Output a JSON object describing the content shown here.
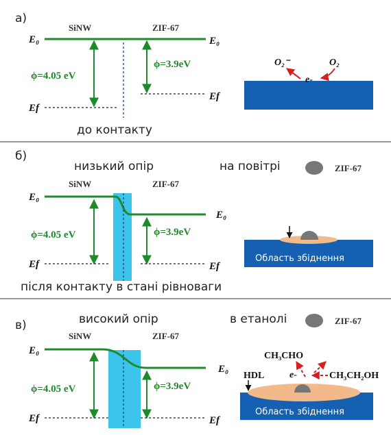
{
  "panels": [
    {
      "label": "а)",
      "left_material": "SiNW",
      "right_material": "ZIF-67",
      "left_top_level": "E₀",
      "right_top_level": "E₀",
      "left_bottom_level": "Ef",
      "right_bottom_level": "Ef",
      "left_work_function": "ϕ=4.05 eV",
      "right_work_function": "ϕ=3.9eV",
      "caption": "до контакту",
      "inset": {
        "ion": "O₂⁻",
        "molecule": "O₂",
        "electron": "e-"
      }
    },
    {
      "label": "б)",
      "resistance": "низький опір",
      "environment": "на повітрі",
      "legend": "ZIF-67",
      "left_material": "SiNW",
      "right_material": "ZIF-67",
      "left_top_level": "E₀",
      "right_top_level": "E₀",
      "left_bottom_level": "Ef",
      "right_bottom_level": "Ef",
      "left_work_function": "ϕ=4.05 eV",
      "right_work_function": "ϕ=3.9eV",
      "caption": "після контакту в стані рівноваги",
      "inset": {
        "region": "Область збіднення"
      }
    },
    {
      "label": "в)",
      "resistance": "високий опір",
      "environment": "в етанолі",
      "legend": "ZIF-67",
      "left_material": "SiNW",
      "right_material": "ZIF-67",
      "left_top_level": "E₀",
      "right_top_level": "E₀",
      "left_bottom_level": "Ef",
      "right_bottom_level": "Ef",
      "left_work_function": "ϕ=4.05 eV",
      "right_work_function": "ϕ=3.9eV",
      "inset": {
        "product": "CH₃CHO",
        "layer": "HDL",
        "electron": "e-",
        "reactant": "CH₃CH₂OH",
        "region": "Область збіднення"
      }
    }
  ]
}
